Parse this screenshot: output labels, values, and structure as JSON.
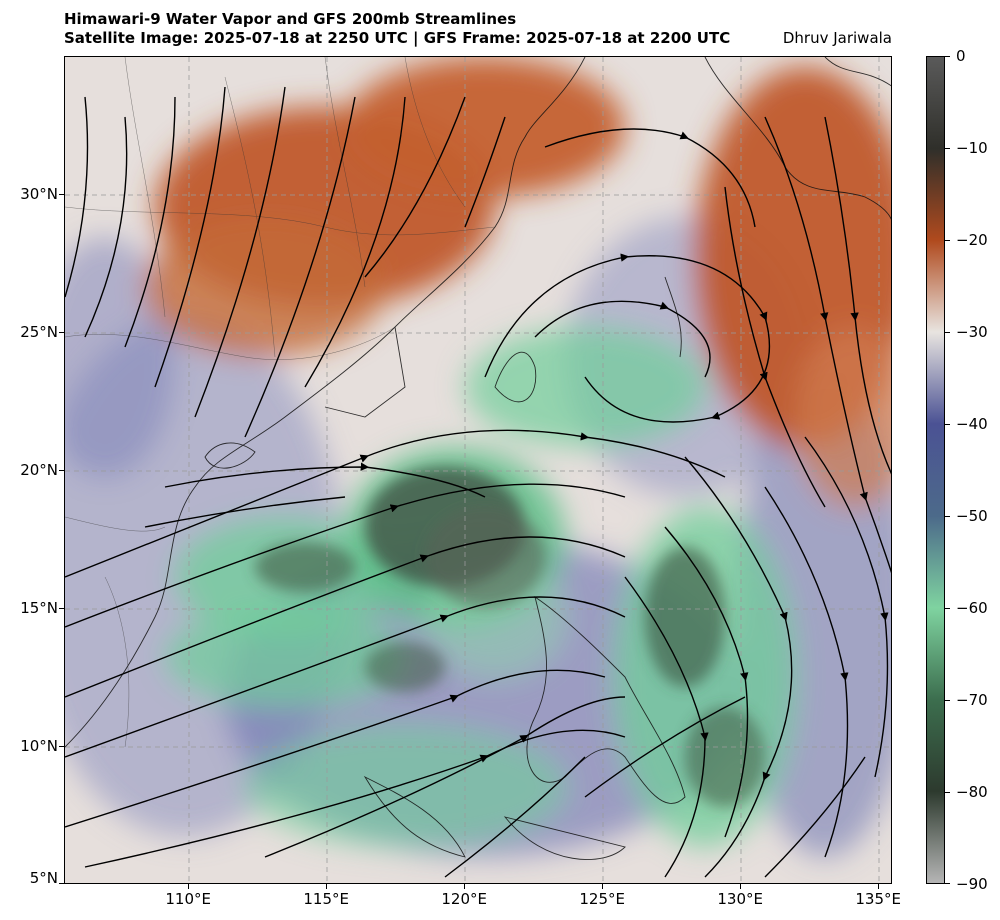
{
  "title_line1": "Himawari-9 Water Vapor and GFS 200mb Streamlines",
  "title_line2": "Satellite Image: 2025-07-18 at 2250 UTC | GFS Frame: 2025-07-18 at 2200 UTC",
  "credit": "Dhruv Jariwala",
  "map": {
    "lon_range": [
      105.5,
      135.5
    ],
    "lat_range": [
      5,
      35
    ],
    "lat_ticks": [
      "30°N",
      "25°N",
      "20°N",
      "15°N",
      "10°N",
      "5°N"
    ],
    "lat_values": [
      30,
      25,
      20,
      15,
      10,
      5
    ],
    "lon_ticks": [
      "110°E",
      "115°E",
      "120°E",
      "125°E",
      "130°E",
      "135°E"
    ],
    "lon_values": [
      110,
      115,
      120,
      125,
      130,
      135
    ],
    "gridlines": "dashed"
  },
  "colorbar": {
    "labels": [
      "0",
      "−10",
      "−20",
      "−30",
      "−40",
      "−50",
      "−60",
      "−70",
      "−80",
      "−90"
    ],
    "values": [
      0,
      -10,
      -20,
      -30,
      -40,
      -50,
      -60,
      -70,
      -80,
      -90
    ],
    "range": [
      -90,
      0
    ],
    "colors": [
      "#5a5a5a",
      "#2f2f2a",
      "#b04a1e",
      "#e8e4e0",
      "#4b5294",
      "#4c6a8a",
      "#7fd3a0",
      "#3c6e4e",
      "#2d3a2e",
      "#b5b5b5"
    ]
  },
  "colors": {
    "warm_dry": "#c05a2a",
    "neutral": "#e9e2dd",
    "cool": "#5b62a8",
    "moist_green": "#6fd09a",
    "deep_convection": "#3d4a3a",
    "streamline": "#000000"
  }
}
